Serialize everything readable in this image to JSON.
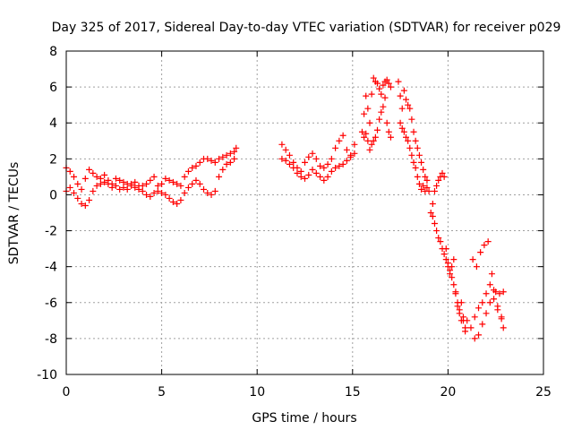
{
  "chart_data": {
    "type": "scatter",
    "title": "Day 325 of 2017, Sidereal Day-to-day VTEC variation (SDTVAR) for receiver p029",
    "xlabel": "GPS time / hours",
    "ylabel": "SDTVAR / TECUs",
    "xlim": [
      0,
      25
    ],
    "ylim": [
      -10,
      8
    ],
    "xticks": [
      "0",
      "5",
      "10",
      "15",
      "20",
      "25"
    ],
    "yticks": [
      "-10",
      "-8",
      "-6",
      "-4",
      "-2",
      "0",
      "2",
      "4",
      "6",
      "8"
    ],
    "grid": true,
    "marker": "plus",
    "color": "#ff0000",
    "series": [
      {
        "x": [
          0.0,
          0.2,
          0.4,
          0.6,
          0.8,
          1.0,
          1.2,
          1.4,
          1.6,
          1.8,
          2.0,
          2.2,
          2.4,
          2.6,
          2.8,
          3.0,
          3.2,
          3.4,
          3.6,
          3.8,
          4.0,
          4.2,
          4.4,
          4.6,
          4.8,
          5.0,
          5.2,
          5.4,
          5.6,
          5.8,
          6.0,
          6.2,
          6.4,
          6.6,
          6.8,
          7.0,
          7.2,
          7.4,
          7.6,
          7.8,
          8.0,
          8.2,
          8.4,
          8.6,
          8.8,
          8.9
        ],
        "y": [
          1.5,
          1.3,
          1.0,
          0.6,
          0.3,
          0.9,
          1.4,
          1.2,
          1.0,
          0.9,
          1.1,
          0.8,
          0.6,
          0.9,
          0.8,
          0.7,
          0.6,
          0.6,
          0.7,
          0.5,
          0.5,
          0.6,
          0.8,
          1.0,
          0.5,
          0.6,
          0.9,
          0.8,
          0.7,
          0.6,
          0.5,
          1.0,
          1.3,
          1.5,
          1.6,
          1.8,
          2.0,
          2.0,
          1.9,
          1.8,
          2.0,
          2.1,
          2.2,
          2.3,
          2.4,
          2.6
        ]
      },
      {
        "x": [
          0.0,
          0.2,
          0.4,
          0.6,
          0.8,
          1.0,
          1.2,
          1.4,
          1.6,
          1.8,
          2.0,
          2.2,
          2.4,
          2.6,
          2.8,
          3.0,
          3.2,
          3.4,
          3.6,
          3.8,
          4.0,
          4.2,
          4.4,
          4.6,
          4.8,
          5.0,
          5.2,
          5.4,
          5.6,
          5.8,
          6.0,
          6.2,
          6.4,
          6.6,
          6.8,
          7.0,
          7.2,
          7.4,
          7.6,
          7.8,
          8.0,
          8.2,
          8.4,
          8.6,
          8.8
        ],
        "y": [
          0.2,
          0.4,
          0.1,
          -0.2,
          -0.5,
          -0.6,
          -0.3,
          0.2,
          0.5,
          0.6,
          0.7,
          0.6,
          0.4,
          0.5,
          0.3,
          0.4,
          0.3,
          0.5,
          0.4,
          0.3,
          0.2,
          0.0,
          -0.1,
          0.1,
          0.2,
          0.1,
          0.0,
          -0.2,
          -0.4,
          -0.5,
          -0.3,
          0.1,
          0.4,
          0.6,
          0.8,
          0.6,
          0.3,
          0.1,
          0.0,
          0.2,
          1.0,
          1.4,
          1.7,
          1.8,
          2.0
        ]
      },
      {
        "x": [
          11.3,
          11.5,
          11.7,
          11.9,
          12.1,
          12.3,
          12.5,
          12.7,
          12.9,
          13.1,
          13.3,
          13.5,
          13.7,
          13.9,
          14.1,
          14.3,
          14.5,
          14.7,
          14.9,
          15.1
        ],
        "y": [
          2.8,
          2.5,
          2.2,
          1.8,
          1.5,
          1.3,
          1.8,
          2.1,
          2.3,
          2.0,
          1.6,
          1.5,
          1.7,
          2.0,
          2.6,
          3.0,
          3.3,
          2.5,
          2.2,
          2.8
        ]
      },
      {
        "x": [
          11.3,
          11.5,
          11.7,
          11.9,
          12.1,
          12.3,
          12.5,
          12.7,
          12.9,
          13.1,
          13.3,
          13.5,
          13.7,
          13.9,
          14.1,
          14.3,
          14.5,
          14.7,
          14.9,
          15.1
        ],
        "y": [
          2.0,
          1.9,
          1.7,
          1.5,
          1.2,
          1.0,
          0.9,
          1.1,
          1.4,
          1.2,
          1.0,
          0.8,
          1.0,
          1.3,
          1.5,
          1.6,
          1.7,
          1.9,
          2.1,
          2.3
        ]
      },
      {
        "x": [
          15.5,
          15.6,
          15.7,
          15.8,
          15.9,
          16.0,
          16.1,
          16.2,
          16.3,
          16.4,
          16.5,
          16.6,
          16.7,
          16.8,
          16.9,
          17.0
        ],
        "y": [
          3.5,
          4.5,
          5.5,
          4.8,
          4.0,
          5.6,
          6.5,
          6.3,
          6.2,
          5.9,
          5.6,
          6.1,
          6.3,
          6.4,
          6.2,
          6.0
        ]
      },
      {
        "x": [
          15.6,
          15.7,
          15.8,
          15.9,
          16.0,
          16.1,
          16.2,
          16.3,
          16.4,
          16.5,
          16.6,
          16.7,
          16.8,
          16.9,
          17.0
        ],
        "y": [
          3.2,
          3.4,
          3.0,
          2.5,
          2.8,
          3.0,
          3.2,
          3.6,
          4.2,
          4.6,
          4.9,
          5.4,
          4.0,
          3.5,
          3.2
        ]
      },
      {
        "x": [
          17.4,
          17.5,
          17.6,
          17.7,
          17.8,
          17.9,
          18.0,
          18.1,
          18.2,
          18.3,
          18.4,
          18.5,
          18.6,
          18.7,
          18.8,
          18.9
        ],
        "y": [
          6.3,
          5.5,
          4.8,
          5.8,
          5.3,
          5.0,
          4.8,
          4.2,
          3.5,
          3.0,
          2.6,
          2.2,
          1.8,
          1.4,
          1.0,
          0.4
        ]
      },
      {
        "x": [
          17.5,
          17.6,
          17.7,
          17.8,
          17.9,
          18.0,
          18.1,
          18.2,
          18.3,
          18.4,
          18.5,
          18.6,
          18.7,
          18.8,
          18.9,
          19.0
        ],
        "y": [
          4.0,
          3.7,
          3.5,
          3.2,
          3.0,
          2.6,
          2.2,
          1.8,
          1.5,
          1.0,
          0.6,
          0.3,
          0.5,
          0.2,
          0.8,
          0.2
        ]
      },
      {
        "x": [
          19.1,
          19.2,
          19.3,
          19.4,
          19.5,
          19.6,
          19.7,
          19.8,
          19.9,
          20.0,
          20.1,
          20.2,
          20.3,
          20.4,
          20.5,
          20.6,
          20.7,
          20.8,
          20.9
        ],
        "y": [
          -1.0,
          -1.2,
          -1.6,
          -2.0,
          -2.4,
          -2.6,
          -3.0,
          -3.3,
          -3.6,
          -4.0,
          -4.2,
          -4.6,
          -5.0,
          -5.4,
          -6.0,
          -6.4,
          -6.0,
          -7.0,
          -7.6
        ]
      },
      {
        "x": [
          19.2,
          19.3,
          19.4,
          19.5,
          19.6,
          19.7,
          19.8,
          19.9,
          20.0,
          20.1,
          20.2,
          20.3,
          20.4,
          20.5,
          20.6,
          20.7,
          20.8,
          20.9
        ],
        "y": [
          -0.5,
          0.2,
          0.5,
          0.8,
          1.0,
          1.2,
          1.0,
          -3.0,
          -3.8,
          -4.4,
          -4.0,
          -3.6,
          -5.5,
          -6.2,
          -6.6,
          -7.0,
          -6.8,
          -7.4
        ]
      },
      {
        "x": [
          21.0,
          21.2,
          21.4,
          21.6,
          21.8,
          22.0,
          22.2,
          22.4,
          22.6,
          22.8,
          22.9
        ],
        "y": [
          -7.0,
          -7.4,
          -8.0,
          -7.8,
          -7.2,
          -6.6,
          -6.0,
          -5.8,
          -6.4,
          -6.9,
          -7.4
        ]
      },
      {
        "x": [
          21.3,
          21.5,
          21.7,
          21.9,
          22.1,
          22.3,
          22.5,
          22.7,
          22.9
        ],
        "y": [
          -3.6,
          -4.0,
          -3.2,
          -2.8,
          -2.6,
          -4.4,
          -5.4,
          -5.5,
          -5.4
        ]
      },
      {
        "x": [
          21.4,
          21.6,
          21.8,
          22.0,
          22.2,
          22.4,
          22.6,
          22.8
        ],
        "y": [
          -6.8,
          -6.3,
          -6.0,
          -5.5,
          -5.0,
          -5.3,
          -6.2,
          -6.8
        ]
      }
    ]
  }
}
